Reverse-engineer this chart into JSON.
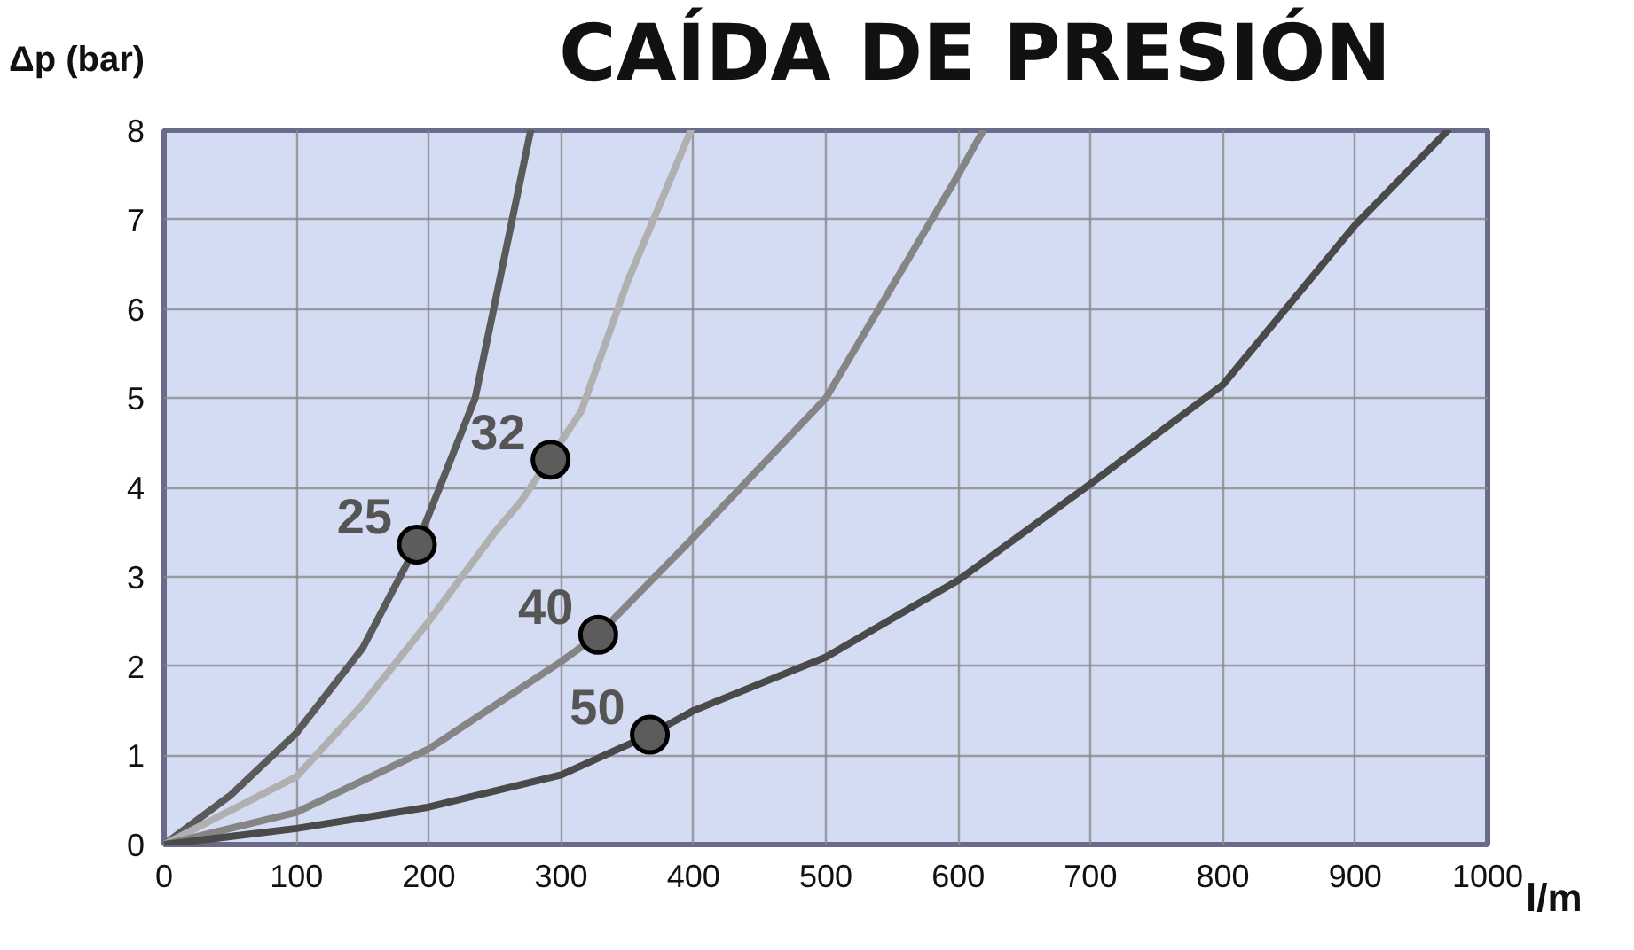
{
  "chart_data": {
    "type": "line",
    "title": "CAÍDA DE PRESIÓN",
    "xlabel": "l/m",
    "ylabel": "Δp (bar)",
    "xlim": [
      0,
      1000
    ],
    "xticks": [
      0,
      100,
      200,
      300,
      400,
      500,
      600,
      700,
      800,
      900,
      1000
    ],
    "ylim": [
      0,
      8
    ],
    "yticks": [
      0,
      1,
      2,
      3,
      4,
      5,
      6,
      7,
      8
    ],
    "grid": true,
    "series": [
      {
        "color": "#5a5a5a",
        "x": [
          0,
          50,
          100,
          150,
          191,
          235,
          277
        ],
        "values": [
          0,
          0.55,
          1.25,
          2.2,
          3.36,
          5.0,
          8.0
        ]
      },
      {
        "color": "#b0b0b0",
        "x": [
          0,
          50,
          100,
          150,
          200,
          250,
          270,
          315,
          350,
          398
        ],
        "values": [
          0,
          0.38,
          0.76,
          1.57,
          2.5,
          3.5,
          3.85,
          4.85,
          6.3,
          8.0
        ]
      },
      {
        "color": "#858585",
        "x": [
          0,
          100,
          200,
          300,
          328,
          400,
          500,
          600,
          619
        ],
        "values": [
          0,
          0.36,
          1.07,
          2.05,
          2.35,
          3.44,
          5.0,
          7.5,
          8.0
        ]
      },
      {
        "color": "#4a4a4a",
        "x": [
          0,
          100,
          200,
          300,
          367,
          400,
          500,
          600,
          700,
          800,
          900,
          970
        ],
        "values": [
          0,
          0.18,
          0.42,
          0.78,
          1.23,
          1.5,
          2.1,
          2.96,
          4.04,
          5.15,
          6.94,
          8.0
        ]
      },
      {
        "type": "scatter",
        "marker": "circle",
        "color": "#5c5c5c",
        "x": [
          191,
          292,
          328,
          367
        ],
        "values": [
          3.36,
          4.31,
          2.35,
          1.23
        ]
      }
    ],
    "annotations": [
      {
        "text": "25",
        "x": 191,
        "y": 3.36
      },
      {
        "text": "32",
        "x": 292,
        "y": 4.31
      },
      {
        "text": "40",
        "x": 328,
        "y": 2.35
      },
      {
        "text": "50",
        "x": 367,
        "y": 1.23
      }
    ]
  }
}
